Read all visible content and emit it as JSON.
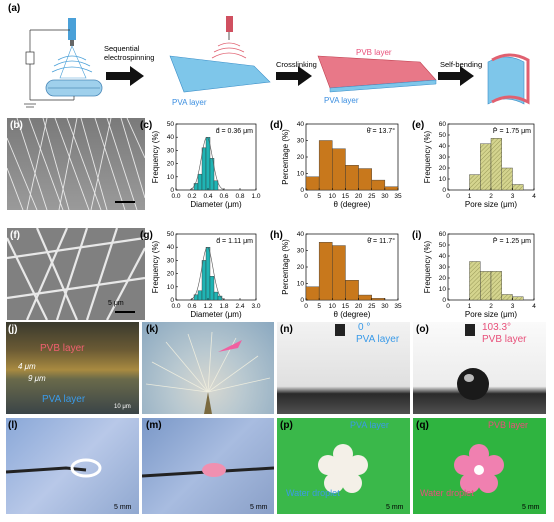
{
  "row_a": {
    "label": "(a)",
    "step1": "Sequential electrospinning",
    "step2": "Crosslinking",
    "step3": "Self-bending",
    "pva_layer": "PVA layer",
    "pvb_layer": "PVB layer",
    "pva_layer2": "PVA layer"
  },
  "sem": {
    "b_label": "(b)",
    "f_label": "(f)",
    "scalebar_b": "",
    "scalebar_f": "5 μm"
  },
  "chart_data": [
    {
      "id": "c",
      "label": "(c)",
      "type": "bar",
      "xlabel": "Diameter (μm)",
      "ylabel": "Frequency (%)",
      "xlim": [
        0.0,
        1.0
      ],
      "ylim": [
        0,
        50
      ],
      "xticks": [
        "0.0",
        "0.2",
        "0.4",
        "0.6",
        "0.8",
        "1.0"
      ],
      "yticks": [
        "0",
        "10",
        "20",
        "30",
        "40",
        "50"
      ],
      "x": [
        0.25,
        0.3,
        0.35,
        0.4,
        0.45,
        0.5
      ],
      "values": [
        5,
        12,
        32,
        40,
        24,
        7
      ],
      "bar_width": 0.05,
      "annotation": "d̄ = 0.36 μm",
      "color": "#1fb4b4",
      "fit": true
    },
    {
      "id": "d",
      "label": "(d)",
      "type": "bar",
      "xlabel": "θ (degree)",
      "ylabel": "Percentage (%)",
      "xlim": [
        0,
        35
      ],
      "ylim": [
        0,
        40
      ],
      "xticks": [
        "0",
        "5",
        "10",
        "15",
        "20",
        "25",
        "30",
        "35"
      ],
      "yticks": [
        "0",
        "10",
        "20",
        "30",
        "40"
      ],
      "x": [
        2.5,
        7.5,
        12.5,
        17.5,
        22.5,
        27.5,
        32.5
      ],
      "values": [
        8,
        30,
        25,
        15,
        13,
        6,
        2
      ],
      "bar_width": 5,
      "annotation": "θ̄ = 13.7°",
      "color": "#c8781c"
    },
    {
      "id": "e",
      "label": "(e)",
      "type": "bar",
      "xlabel": "Pore size (μm)",
      "ylabel": "Frequency (%)",
      "xlim": [
        0,
        4
      ],
      "ylim": [
        0,
        60
      ],
      "xticks": [
        "0",
        "1",
        "2",
        "3",
        "4"
      ],
      "yticks": [
        "0",
        "10",
        "20",
        "30",
        "40",
        "50",
        "60"
      ],
      "x": [
        1.25,
        1.75,
        2.25,
        2.75,
        3.25
      ],
      "values": [
        14,
        42,
        47,
        20,
        5
      ],
      "bar_width": 0.5,
      "annotation": "P̄ = 1.75 μm",
      "color": "#c8c87e",
      "hatch": true
    },
    {
      "id": "g",
      "label": "(g)",
      "type": "bar",
      "xlabel": "Diameter (μm)",
      "ylabel": "Frequency (%)",
      "xlim": [
        0.0,
        3.0
      ],
      "ylim": [
        0,
        50
      ],
      "xticks": [
        "0.0",
        "0.6",
        "1.2",
        "1.8",
        "2.4",
        "3.0"
      ],
      "yticks": [
        "0",
        "10",
        "20",
        "30",
        "40",
        "50"
      ],
      "x": [
        0.75,
        0.9,
        1.05,
        1.2,
        1.35,
        1.5,
        1.65
      ],
      "values": [
        4,
        7,
        30,
        40,
        18,
        6,
        3
      ],
      "bar_width": 0.15,
      "annotation": "d̄ = 1.11 μm",
      "color": "#1fb4b4",
      "fit": true
    },
    {
      "id": "h",
      "label": "(h)",
      "type": "bar",
      "xlabel": "θ (degree)",
      "ylabel": "Percentage (%)",
      "xlim": [
        0,
        35
      ],
      "ylim": [
        0,
        40
      ],
      "xticks": [
        "0",
        "5",
        "10",
        "15",
        "20",
        "25",
        "30",
        "35"
      ],
      "yticks": [
        "0",
        "10",
        "20",
        "30",
        "40"
      ],
      "x": [
        2.5,
        7.5,
        12.5,
        17.5,
        22.5,
        27.5
      ],
      "values": [
        8,
        35,
        33,
        12,
        3,
        1
      ],
      "bar_width": 5,
      "annotation": "θ̄ = 11.7°",
      "color": "#c8781c"
    },
    {
      "id": "i",
      "label": "(i)",
      "type": "bar",
      "xlabel": "Pore size (μm)",
      "ylabel": "Frequency (%)",
      "xlim": [
        0,
        4
      ],
      "ylim": [
        0,
        60
      ],
      "xticks": [
        "0",
        "1",
        "2",
        "3",
        "4"
      ],
      "yticks": [
        "0",
        "10",
        "20",
        "30",
        "40",
        "50",
        "60"
      ],
      "x": [
        1.25,
        1.75,
        2.25,
        2.75,
        3.25
      ],
      "values": [
        35,
        26,
        26,
        5,
        3
      ],
      "bar_width": 0.5,
      "annotation": "P̄ = 1.25 μm",
      "color": "#c8c87e",
      "hatch": true
    }
  ],
  "photos": {
    "j": {
      "label": "(j)",
      "pvb": "PVB layer",
      "pva": "PVA layer",
      "t1": "4 μm",
      "t2": "9 μm",
      "scale": "10 μm"
    },
    "k": {
      "label": "(k)"
    },
    "n": {
      "label": "(n)",
      "angle": "0 °",
      "layer": "PVA layer"
    },
    "o": {
      "label": "(o)",
      "angle": "103.3°",
      "layer": "PVB layer"
    },
    "l": {
      "label": "(l)",
      "scale": "5 mm"
    },
    "m": {
      "label": "(m)",
      "scale": "5 mm"
    },
    "p": {
      "label": "(p)",
      "layer": "PVA layer",
      "droplet": "Water droplet",
      "scale": "5 mm"
    },
    "q": {
      "label": "(q)",
      "layer": "PVB layer",
      "droplet": "Water droplet",
      "scale": "5 mm"
    }
  },
  "colors": {
    "teal": "#1fb4b4",
    "brown": "#c8781c",
    "khaki": "#c8c87e",
    "pink": "#e8507a",
    "blue": "#3a8ee0"
  }
}
